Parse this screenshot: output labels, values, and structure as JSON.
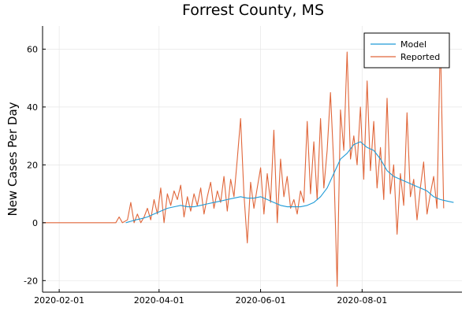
{
  "chart_data": {
    "type": "line",
    "title": "Forrest County, MS",
    "xlabel": "",
    "ylabel": "New Cases Per Day",
    "x_ticks": [
      "2020-02-01",
      "2020-04-01",
      "2020-06-01",
      "2020-08-01"
    ],
    "y_ticks": [
      -20,
      0,
      20,
      40,
      60
    ],
    "xlim": [
      "2020-01-22",
      "2020-09-30"
    ],
    "ylim": [
      -24,
      68
    ],
    "grid": true,
    "legend_position": "top-right",
    "colors": {
      "Model": "#1f9bd7",
      "Reported": "#e0663a"
    },
    "series": [
      {
        "name": "Model",
        "points": [
          [
            "2020-03-12",
            0
          ],
          [
            "2020-03-15",
            0.5
          ],
          [
            "2020-03-18",
            1
          ],
          [
            "2020-03-22",
            1.5
          ],
          [
            "2020-03-25",
            2
          ],
          [
            "2020-03-29",
            3
          ],
          [
            "2020-04-02",
            4
          ],
          [
            "2020-04-06",
            5
          ],
          [
            "2020-04-10",
            5.5
          ],
          [
            "2020-04-14",
            6
          ],
          [
            "2020-04-18",
            5.5
          ],
          [
            "2020-04-22",
            5.5
          ],
          [
            "2020-04-26",
            6
          ],
          [
            "2020-04-30",
            6.5
          ],
          [
            "2020-05-04",
            7
          ],
          [
            "2020-05-08",
            7.5
          ],
          [
            "2020-05-12",
            8
          ],
          [
            "2020-05-16",
            8.5
          ],
          [
            "2020-05-20",
            9
          ],
          [
            "2020-05-24",
            8.5
          ],
          [
            "2020-05-28",
            8.5
          ],
          [
            "2020-06-01",
            9
          ],
          [
            "2020-06-05",
            8
          ],
          [
            "2020-06-09",
            7
          ],
          [
            "2020-06-13",
            6
          ],
          [
            "2020-06-17",
            5.5
          ],
          [
            "2020-06-21",
            5.5
          ],
          [
            "2020-06-25",
            5.5
          ],
          [
            "2020-06-29",
            6
          ],
          [
            "2020-07-03",
            7
          ],
          [
            "2020-07-07",
            9
          ],
          [
            "2020-07-11",
            12
          ],
          [
            "2020-07-15",
            17
          ],
          [
            "2020-07-19",
            22
          ],
          [
            "2020-07-23",
            24
          ],
          [
            "2020-07-27",
            27
          ],
          [
            "2020-07-31",
            28
          ],
          [
            "2020-08-04",
            26
          ],
          [
            "2020-08-08",
            25
          ],
          [
            "2020-08-12",
            22
          ],
          [
            "2020-08-16",
            18
          ],
          [
            "2020-08-20",
            16
          ],
          [
            "2020-08-24",
            15
          ],
          [
            "2020-08-28",
            14
          ],
          [
            "2020-09-01",
            13
          ],
          [
            "2020-09-05",
            12
          ],
          [
            "2020-09-09",
            11
          ],
          [
            "2020-09-13",
            9
          ],
          [
            "2020-09-17",
            8
          ],
          [
            "2020-09-21",
            7.5
          ],
          [
            "2020-09-25",
            7
          ]
        ]
      },
      {
        "name": "Reported",
        "points": [
          [
            "2020-01-22",
            0
          ],
          [
            "2020-03-06",
            0
          ],
          [
            "2020-03-08",
            2
          ],
          [
            "2020-03-10",
            0
          ],
          [
            "2020-03-13",
            1
          ],
          [
            "2020-03-15",
            7
          ],
          [
            "2020-03-17",
            0
          ],
          [
            "2020-03-19",
            3
          ],
          [
            "2020-03-21",
            0
          ],
          [
            "2020-03-23",
            2
          ],
          [
            "2020-03-25",
            5
          ],
          [
            "2020-03-27",
            1
          ],
          [
            "2020-03-29",
            8
          ],
          [
            "2020-03-31",
            3
          ],
          [
            "2020-04-02",
            12
          ],
          [
            "2020-04-04",
            0
          ],
          [
            "2020-04-06",
            10
          ],
          [
            "2020-04-08",
            6
          ],
          [
            "2020-04-10",
            11
          ],
          [
            "2020-04-12",
            8
          ],
          [
            "2020-04-14",
            13
          ],
          [
            "2020-04-16",
            2
          ],
          [
            "2020-04-18",
            9
          ],
          [
            "2020-04-20",
            4
          ],
          [
            "2020-04-22",
            10
          ],
          [
            "2020-04-24",
            6
          ],
          [
            "2020-04-26",
            12
          ],
          [
            "2020-04-28",
            3
          ],
          [
            "2020-04-30",
            9
          ],
          [
            "2020-05-02",
            14
          ],
          [
            "2020-05-04",
            5
          ],
          [
            "2020-05-06",
            11
          ],
          [
            "2020-05-08",
            7
          ],
          [
            "2020-05-10",
            16
          ],
          [
            "2020-05-12",
            4
          ],
          [
            "2020-05-14",
            15
          ],
          [
            "2020-05-16",
            9
          ],
          [
            "2020-05-18",
            22
          ],
          [
            "2020-05-20",
            36
          ],
          [
            "2020-05-22",
            10
          ],
          [
            "2020-05-24",
            -7
          ],
          [
            "2020-05-26",
            14
          ],
          [
            "2020-05-28",
            5
          ],
          [
            "2020-05-30",
            12
          ],
          [
            "2020-06-01",
            19
          ],
          [
            "2020-06-03",
            3
          ],
          [
            "2020-06-05",
            17
          ],
          [
            "2020-06-07",
            7
          ],
          [
            "2020-06-09",
            32
          ],
          [
            "2020-06-11",
            0
          ],
          [
            "2020-06-13",
            22
          ],
          [
            "2020-06-15",
            9
          ],
          [
            "2020-06-17",
            16
          ],
          [
            "2020-06-19",
            5
          ],
          [
            "2020-06-21",
            8
          ],
          [
            "2020-06-23",
            3
          ],
          [
            "2020-06-25",
            11
          ],
          [
            "2020-06-27",
            7
          ],
          [
            "2020-06-29",
            35
          ],
          [
            "2020-07-01",
            10
          ],
          [
            "2020-07-03",
            28
          ],
          [
            "2020-07-05",
            8
          ],
          [
            "2020-07-07",
            36
          ],
          [
            "2020-07-09",
            12
          ],
          [
            "2020-07-11",
            25
          ],
          [
            "2020-07-13",
            45
          ],
          [
            "2020-07-15",
            20
          ],
          [
            "2020-07-17",
            -22
          ],
          [
            "2020-07-19",
            39
          ],
          [
            "2020-07-21",
            25
          ],
          [
            "2020-07-23",
            59
          ],
          [
            "2020-07-25",
            22
          ],
          [
            "2020-07-27",
            30
          ],
          [
            "2020-07-29",
            20
          ],
          [
            "2020-07-31",
            40
          ],
          [
            "2020-08-02",
            15
          ],
          [
            "2020-08-04",
            49
          ],
          [
            "2020-08-06",
            18
          ],
          [
            "2020-08-08",
            35
          ],
          [
            "2020-08-10",
            12
          ],
          [
            "2020-08-12",
            26
          ],
          [
            "2020-08-14",
            8
          ],
          [
            "2020-08-16",
            43
          ],
          [
            "2020-08-18",
            10
          ],
          [
            "2020-08-20",
            20
          ],
          [
            "2020-08-22",
            -4
          ],
          [
            "2020-08-24",
            17
          ],
          [
            "2020-08-26",
            6
          ],
          [
            "2020-08-28",
            38
          ],
          [
            "2020-08-30",
            9
          ],
          [
            "2020-09-01",
            15
          ],
          [
            "2020-09-03",
            1
          ],
          [
            "2020-09-05",
            12
          ],
          [
            "2020-09-07",
            21
          ],
          [
            "2020-09-09",
            3
          ],
          [
            "2020-09-11",
            10
          ],
          [
            "2020-09-13",
            16
          ],
          [
            "2020-09-15",
            5
          ],
          [
            "2020-09-17",
            64
          ],
          [
            "2020-09-19",
            5
          ]
        ]
      }
    ]
  }
}
